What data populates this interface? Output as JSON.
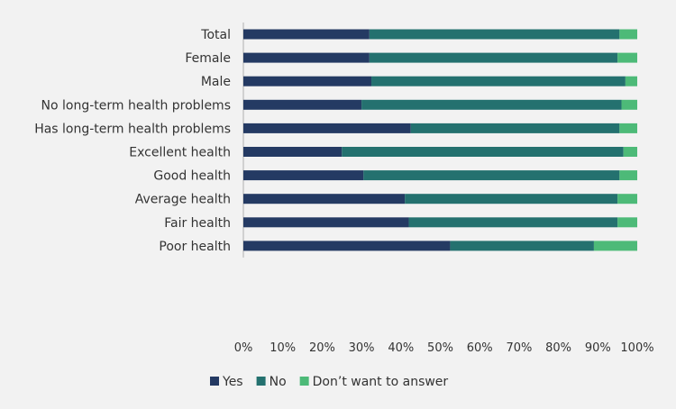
{
  "chart_data": {
    "type": "bar",
    "orientation": "horizontal",
    "stacked": true,
    "percent_scale": true,
    "categories": [
      "Total",
      "Female",
      "Male",
      "No long-term health problems",
      "Has long-term health problems",
      "Excellent health",
      "Good health",
      "Average health",
      "Fair health",
      "Poor health"
    ],
    "groups": [
      [
        0
      ],
      [
        1,
        2
      ],
      [
        3,
        4
      ],
      [
        5,
        6,
        7,
        8,
        9
      ]
    ],
    "series": [
      {
        "name": "Yes",
        "color": "#243a63",
        "values": [
          32,
          32,
          32.5,
          30,
          42.5,
          25,
          30.5,
          41,
          42,
          52.5
        ]
      },
      {
        "name": "No",
        "color": "#24716f",
        "values": [
          63.5,
          63,
          64.5,
          66,
          53,
          71.5,
          65,
          54,
          53,
          36.5
        ]
      },
      {
        "name": "Don’t want to answer",
        "color": "#4dba78",
        "values": [
          4.5,
          5,
          3,
          4,
          4.5,
          3.5,
          4.5,
          5,
          5,
          11
        ]
      }
    ],
    "xlim": [
      0,
      100
    ],
    "x_ticks": [
      "0%",
      "10%",
      "20%",
      "30%",
      "40%",
      "50%",
      "60%",
      "70%",
      "80%",
      "90%",
      "100%"
    ],
    "grid": false,
    "legend": "bottom"
  }
}
